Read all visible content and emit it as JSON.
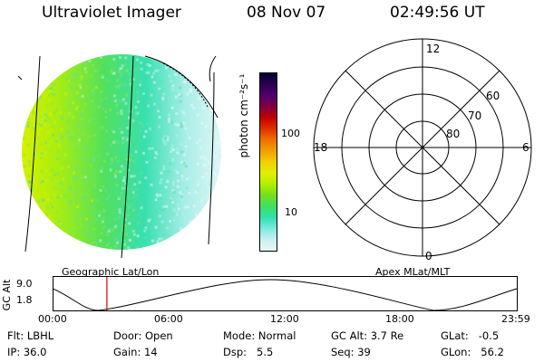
{
  "header": {
    "instrument": "Ultraviolet Imager",
    "date": "08 Nov 07",
    "time": "02:49:56 UT"
  },
  "colorbar": {
    "unit_label": "photon cm⁻²s⁻¹",
    "ticks": [
      "100",
      "10"
    ],
    "colors": [
      "#000033",
      "#2a0050",
      "#500070",
      "#800040",
      "#c00000",
      "#e03000",
      "#f07000",
      "#f0a000",
      "#f0d000",
      "#e0f000",
      "#b0f000",
      "#70e020",
      "#40e060",
      "#30e0b0",
      "#80e8e0",
      "#c8f0f0",
      "#e8f8f8"
    ]
  },
  "polar_plot": {
    "mlt_labels": [
      "12",
      "18",
      "6",
      "0"
    ],
    "lat_labels": [
      "60",
      "70",
      "80"
    ]
  },
  "map_labels": {
    "left": "Geographic Lat/Lon",
    "right": "Apex MLat/MLT"
  },
  "altitude_plot": {
    "axis_label": "GC Alt",
    "y_ticks": [
      "9.0",
      "1.8"
    ],
    "x_ticks": [
      "00:00",
      "06:00",
      "12:00",
      "18:00",
      "23:59"
    ],
    "current_time_fraction": 0.117
  },
  "status": {
    "filter_label": "Flt:",
    "filter": "LBHL",
    "ip_label": "IP:",
    "ip": "36.0",
    "door_label": "Door:",
    "door": "Open",
    "gain_label": "Gain:",
    "gain": "14",
    "mode_label": "Mode:",
    "mode": "Normal",
    "dsp_label": "Dsp:",
    "dsp": "5.5",
    "gcalt_label": "GC Alt:",
    "gcalt": "3.7 Re",
    "seq_label": "Seq:",
    "seq": "39",
    "glat_label": "GLat:",
    "glat": "-0.5",
    "glon_label": "GLon:",
    "glon": "56.2"
  },
  "colors": {
    "red_marker": "#d00000"
  }
}
